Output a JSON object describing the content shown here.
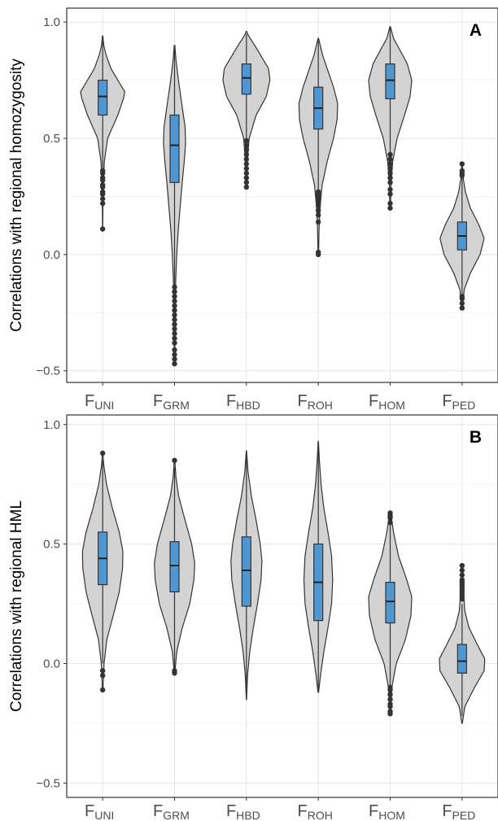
{
  "chart_data": [
    {
      "type": "violin",
      "panel_label": "A",
      "ylabel": "Correlations with regional homozygosity",
      "ylim": [
        -0.55,
        1.06
      ],
      "yticks": [
        -0.5,
        0.0,
        0.5,
        1.0
      ],
      "ytick_labels": [
        "−0.5",
        "0.0",
        "0.5",
        "1.0"
      ],
      "grid": true,
      "categories": [
        {
          "main": "F",
          "sub": "UNI"
        },
        {
          "main": "F",
          "sub": "GRM"
        },
        {
          "main": "F",
          "sub": "HBD"
        },
        {
          "main": "F",
          "sub": "ROH"
        },
        {
          "main": "F",
          "sub": "HOM"
        },
        {
          "main": "F",
          "sub": "PED"
        }
      ],
      "violin_fill": "#d3d3d3",
      "box_fill": "#4f96d3",
      "series": [
        {
          "min": 0.11,
          "max": 0.94,
          "q1": 0.6,
          "median": 0.68,
          "q3": 0.75,
          "whisker_low": 0.37,
          "whisker_high": 0.92,
          "density": [
            [
              0.11,
              0.004
            ],
            [
              0.2,
              0.01
            ],
            [
              0.3,
              0.025
            ],
            [
              0.4,
              0.06
            ],
            [
              0.5,
              0.18
            ],
            [
              0.6,
              0.55
            ],
            [
              0.67,
              0.75
            ],
            [
              0.7,
              0.8
            ],
            [
              0.74,
              0.6
            ],
            [
              0.8,
              0.3
            ],
            [
              0.86,
              0.12
            ],
            [
              0.9,
              0.04
            ],
            [
              0.94,
              0.01
            ]
          ],
          "outliers": [
            0.11,
            0.22,
            0.24,
            0.26,
            0.27,
            0.29,
            0.3,
            0.32,
            0.33,
            0.35,
            0.36
          ]
        },
        {
          "min": -0.47,
          "max": 0.9,
          "q1": 0.31,
          "median": 0.47,
          "q3": 0.6,
          "whisker_low": -0.13,
          "whisker_high": 0.9,
          "density": [
            [
              -0.47,
              0.01
            ],
            [
              -0.3,
              0.02
            ],
            [
              -0.2,
              0.03
            ],
            [
              -0.1,
              0.045
            ],
            [
              0.0,
              0.08
            ],
            [
              0.1,
              0.13
            ],
            [
              0.2,
              0.2
            ],
            [
              0.3,
              0.27
            ],
            [
              0.4,
              0.35
            ],
            [
              0.48,
              0.4
            ],
            [
              0.55,
              0.38
            ],
            [
              0.65,
              0.26
            ],
            [
              0.75,
              0.14
            ],
            [
              0.84,
              0.05
            ],
            [
              0.9,
              0.01
            ]
          ],
          "outliers": [
            -0.47,
            -0.45,
            -0.43,
            -0.41,
            -0.38,
            -0.36,
            -0.34,
            -0.32,
            -0.3,
            -0.28,
            -0.26,
            -0.24,
            -0.22,
            -0.2,
            -0.18,
            -0.16,
            -0.14
          ]
        },
        {
          "min": 0.29,
          "max": 0.96,
          "q1": 0.69,
          "median": 0.76,
          "q3": 0.82,
          "whisker_low": 0.5,
          "whisker_high": 0.95,
          "density": [
            [
              0.29,
              0.01
            ],
            [
              0.4,
              0.03
            ],
            [
              0.5,
              0.1
            ],
            [
              0.6,
              0.35
            ],
            [
              0.68,
              0.72
            ],
            [
              0.75,
              0.85
            ],
            [
              0.8,
              0.8
            ],
            [
              0.86,
              0.5
            ],
            [
              0.9,
              0.3
            ],
            [
              0.94,
              0.08
            ],
            [
              0.96,
              0.01
            ]
          ],
          "outliers": [
            0.29,
            0.31,
            0.33,
            0.35,
            0.37,
            0.39,
            0.41,
            0.43,
            0.45,
            0.47,
            0.49
          ]
        },
        {
          "min": 0.0,
          "max": 0.93,
          "q1": 0.54,
          "median": 0.63,
          "q3": 0.72,
          "whisker_low": 0.28,
          "whisker_high": 0.93,
          "density": [
            [
              0.0,
              0.01
            ],
            [
              0.1,
              0.025
            ],
            [
              0.2,
              0.06
            ],
            [
              0.3,
              0.14
            ],
            [
              0.4,
              0.32
            ],
            [
              0.5,
              0.55
            ],
            [
              0.58,
              0.68
            ],
            [
              0.65,
              0.7
            ],
            [
              0.72,
              0.55
            ],
            [
              0.8,
              0.32
            ],
            [
              0.86,
              0.15
            ],
            [
              0.93,
              0.01
            ]
          ],
          "outliers": [
            0.0,
            0.01,
            0.14,
            0.17,
            0.19,
            0.21,
            0.22,
            0.23,
            0.24,
            0.25,
            0.26,
            0.27
          ]
        },
        {
          "min": 0.2,
          "max": 0.98,
          "q1": 0.67,
          "median": 0.75,
          "q3": 0.82,
          "whisker_low": 0.44,
          "whisker_high": 0.98,
          "density": [
            [
              0.2,
              0.01
            ],
            [
              0.3,
              0.03
            ],
            [
              0.4,
              0.09
            ],
            [
              0.5,
              0.25
            ],
            [
              0.6,
              0.52
            ],
            [
              0.68,
              0.72
            ],
            [
              0.75,
              0.78
            ],
            [
              0.82,
              0.62
            ],
            [
              0.88,
              0.35
            ],
            [
              0.93,
              0.12
            ],
            [
              0.98,
              0.01
            ]
          ],
          "outliers": [
            0.2,
            0.22,
            0.26,
            0.28,
            0.31,
            0.33,
            0.35,
            0.37,
            0.39,
            0.41,
            0.43
          ]
        },
        {
          "min": -0.23,
          "max": 0.39,
          "q1": 0.02,
          "median": 0.08,
          "q3": 0.14,
          "whisker_low": -0.17,
          "whisker_high": 0.33,
          "density": [
            [
              -0.23,
              0.01
            ],
            [
              -0.15,
              0.08
            ],
            [
              -0.08,
              0.3
            ],
            [
              0.0,
              0.65
            ],
            [
              0.07,
              0.8
            ],
            [
              0.13,
              0.6
            ],
            [
              0.2,
              0.3
            ],
            [
              0.27,
              0.12
            ],
            [
              0.33,
              0.04
            ],
            [
              0.39,
              0.01
            ]
          ],
          "outliers": [
            -0.23,
            -0.21,
            -0.19,
            -0.18,
            0.34,
            0.35,
            0.36,
            0.39
          ]
        }
      ]
    },
    {
      "type": "violin",
      "panel_label": "B",
      "ylabel": "Correlations with regional HML",
      "ylim": [
        -0.56,
        1.04
      ],
      "yticks": [
        -0.5,
        0.0,
        0.5,
        1.0
      ],
      "ytick_labels": [
        "−0.5",
        "0.0",
        "0.5",
        "1.0"
      ],
      "grid": true,
      "categories": [
        {
          "main": "F",
          "sub": "UNI"
        },
        {
          "main": "F",
          "sub": "GRM"
        },
        {
          "main": "F",
          "sub": "HBD"
        },
        {
          "main": "F",
          "sub": "ROH"
        },
        {
          "main": "F",
          "sub": "HOM"
        },
        {
          "main": "F",
          "sub": "PED"
        }
      ],
      "violin_fill": "#d3d3d3",
      "box_fill": "#4f96d3",
      "series": [
        {
          "min": -0.11,
          "max": 0.88,
          "q1": 0.33,
          "median": 0.44,
          "q3": 0.55,
          "whisker_low": 0.0,
          "whisker_high": 0.85,
          "density": [
            [
              -0.11,
              0.01
            ],
            [
              0.0,
              0.05
            ],
            [
              0.1,
              0.15
            ],
            [
              0.2,
              0.38
            ],
            [
              0.3,
              0.6
            ],
            [
              0.4,
              0.72
            ],
            [
              0.47,
              0.73
            ],
            [
              0.55,
              0.6
            ],
            [
              0.65,
              0.35
            ],
            [
              0.75,
              0.14
            ],
            [
              0.83,
              0.04
            ],
            [
              0.88,
              0.01
            ]
          ],
          "outliers": [
            -0.11,
            -0.05,
            -0.03,
            0.88
          ]
        },
        {
          "min": -0.04,
          "max": 0.85,
          "q1": 0.3,
          "median": 0.41,
          "q3": 0.51,
          "whisker_low": -0.02,
          "whisker_high": 0.82,
          "density": [
            [
              -0.04,
              0.01
            ],
            [
              0.05,
              0.08
            ],
            [
              0.15,
              0.28
            ],
            [
              0.25,
              0.55
            ],
            [
              0.35,
              0.7
            ],
            [
              0.42,
              0.73
            ],
            [
              0.5,
              0.62
            ],
            [
              0.6,
              0.38
            ],
            [
              0.7,
              0.15
            ],
            [
              0.78,
              0.05
            ],
            [
              0.85,
              0.01
            ]
          ],
          "outliers": [
            -0.04,
            -0.03,
            0.85
          ]
        },
        {
          "min": -0.15,
          "max": 0.89,
          "q1": 0.24,
          "median": 0.39,
          "q3": 0.53,
          "whisker_low": -0.14,
          "whisker_high": 0.89,
          "density": [
            [
              -0.15,
              0.005
            ],
            [
              -0.05,
              0.04
            ],
            [
              0.05,
              0.12
            ],
            [
              0.15,
              0.25
            ],
            [
              0.25,
              0.4
            ],
            [
              0.35,
              0.53
            ],
            [
              0.43,
              0.56
            ],
            [
              0.5,
              0.5
            ],
            [
              0.6,
              0.35
            ],
            [
              0.7,
              0.18
            ],
            [
              0.8,
              0.06
            ],
            [
              0.89,
              0.005
            ]
          ],
          "outliers": []
        },
        {
          "min": -0.12,
          "max": 0.93,
          "q1": 0.18,
          "median": 0.34,
          "q3": 0.5,
          "whisker_low": -0.12,
          "whisker_high": 0.92,
          "density": [
            [
              -0.12,
              0.01
            ],
            [
              -0.05,
              0.08
            ],
            [
              0.05,
              0.2
            ],
            [
              0.15,
              0.35
            ],
            [
              0.25,
              0.48
            ],
            [
              0.35,
              0.52
            ],
            [
              0.45,
              0.48
            ],
            [
              0.55,
              0.35
            ],
            [
              0.65,
              0.2
            ],
            [
              0.75,
              0.1
            ],
            [
              0.85,
              0.04
            ],
            [
              0.93,
              0.005
            ]
          ],
          "outliers": []
        },
        {
          "min": -0.21,
          "max": 0.63,
          "q1": 0.17,
          "median": 0.26,
          "q3": 0.34,
          "whisker_low": -0.09,
          "whisker_high": 0.58,
          "density": [
            [
              -0.21,
              0.01
            ],
            [
              -0.1,
              0.06
            ],
            [
              0.0,
              0.22
            ],
            [
              0.1,
              0.55
            ],
            [
              0.2,
              0.75
            ],
            [
              0.28,
              0.78
            ],
            [
              0.35,
              0.6
            ],
            [
              0.45,
              0.3
            ],
            [
              0.55,
              0.12
            ],
            [
              0.63,
              0.02
            ]
          ],
          "outliers": [
            -0.21,
            -0.2,
            -0.18,
            -0.17,
            -0.15,
            -0.13,
            -0.11,
            -0.1,
            0.59,
            0.61,
            0.62,
            0.63
          ]
        },
        {
          "min": -0.25,
          "max": 0.41,
          "q1": -0.04,
          "median": 0.01,
          "q3": 0.08,
          "whisker_low": -0.22,
          "whisker_high": 0.25,
          "density": [
            [
              -0.25,
              0.01
            ],
            [
              -0.18,
              0.1
            ],
            [
              -0.1,
              0.45
            ],
            [
              -0.03,
              0.8
            ],
            [
              0.02,
              0.82
            ],
            [
              0.08,
              0.55
            ],
            [
              0.15,
              0.25
            ],
            [
              0.22,
              0.1
            ],
            [
              0.3,
              0.05
            ],
            [
              0.36,
              0.02
            ],
            [
              0.41,
              0.005
            ]
          ],
          "outliers": [
            0.27,
            0.28,
            0.29,
            0.3,
            0.31,
            0.32,
            0.33,
            0.34,
            0.35,
            0.37,
            0.39,
            0.41
          ]
        }
      ]
    }
  ]
}
